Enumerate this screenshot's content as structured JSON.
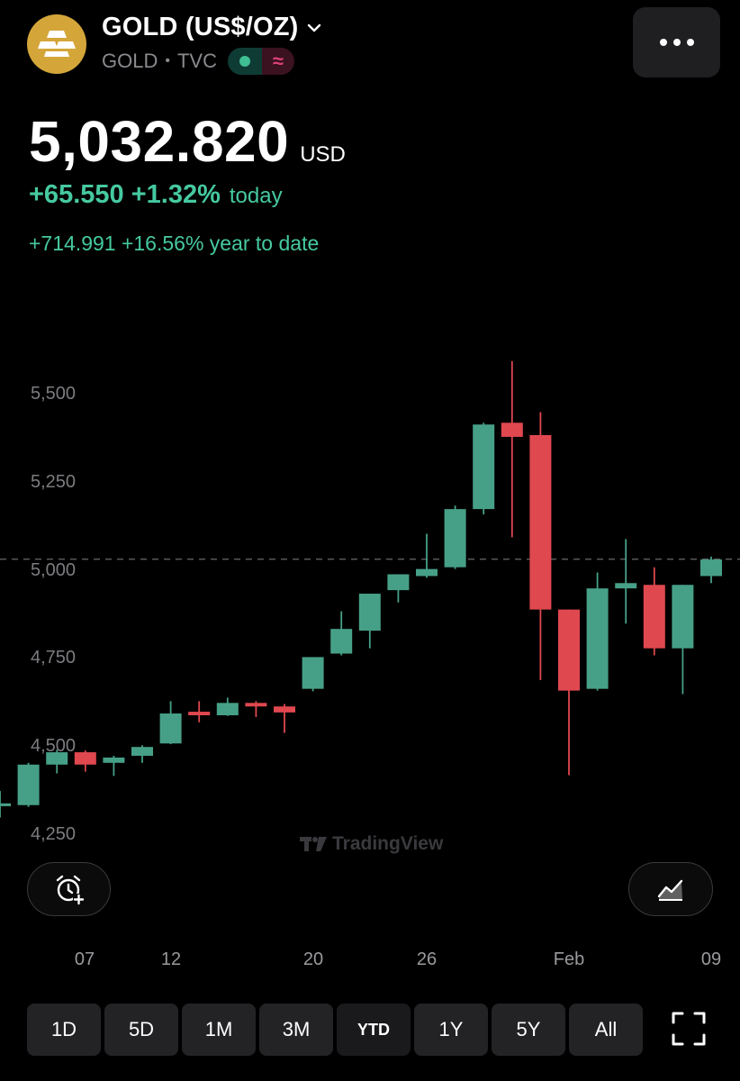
{
  "header": {
    "title": "GOLD (US$/OZ)",
    "symbol": "GOLD",
    "separator": "•",
    "exchange": "TVC",
    "logo_color": "#d4a63a"
  },
  "quote": {
    "price": "5,032.820",
    "currency": "USD",
    "change_today": "+65.550 +1.32%",
    "today_label": "today",
    "ytd": "+714.991 +16.56% year to date"
  },
  "chart_data": {
    "type": "candlestick",
    "y_ticks": [
      "5,500",
      "5,250",
      "5,000",
      "4,750",
      "4,500",
      "4,250"
    ],
    "ylim": [
      4230,
      5560
    ],
    "x_ticks": [
      "07",
      "12",
      "20",
      "26",
      "Feb",
      "09"
    ],
    "current_price_line": 5032.82,
    "colors": {
      "up": "#46a087",
      "down": "#e0484f"
    },
    "candles": [
      {
        "o": 4332,
        "h": 4375,
        "l": 4300,
        "c": 4340
      },
      {
        "o": 4335,
        "h": 4455,
        "l": 4330,
        "c": 4450
      },
      {
        "o": 4450,
        "h": 4492,
        "l": 4425,
        "c": 4485
      },
      {
        "o": 4485,
        "h": 4490,
        "l": 4430,
        "c": 4450
      },
      {
        "o": 4455,
        "h": 4475,
        "l": 4418,
        "c": 4470
      },
      {
        "o": 4475,
        "h": 4505,
        "l": 4455,
        "c": 4500
      },
      {
        "o": 4510,
        "h": 4630,
        "l": 4508,
        "c": 4595
      },
      {
        "o": 4600,
        "h": 4630,
        "l": 4570,
        "c": 4590
      },
      {
        "o": 4590,
        "h": 4640,
        "l": 4588,
        "c": 4625
      },
      {
        "o": 4625,
        "h": 4630,
        "l": 4585,
        "c": 4615
      },
      {
        "o": 4615,
        "h": 4622,
        "l": 4540,
        "c": 4598
      },
      {
        "o": 4665,
        "h": 4755,
        "l": 4658,
        "c": 4755
      },
      {
        "o": 4765,
        "h": 4885,
        "l": 4760,
        "c": 4835
      },
      {
        "o": 4830,
        "h": 4935,
        "l": 4780,
        "c": 4935
      },
      {
        "o": 4945,
        "h": 4990,
        "l": 4910,
        "c": 4990
      },
      {
        "o": 4985,
        "h": 5105,
        "l": 4980,
        "c": 5005
      },
      {
        "o": 5010,
        "h": 5185,
        "l": 5005,
        "c": 5175
      },
      {
        "o": 5175,
        "h": 5420,
        "l": 5160,
        "c": 5415
      },
      {
        "o": 5420,
        "h": 5595,
        "l": 5095,
        "c": 5380
      },
      {
        "o": 5385,
        "h": 5450,
        "l": 4690,
        "c": 4890
      },
      {
        "o": 4890,
        "h": 4890,
        "l": 4420,
        "c": 4660
      },
      {
        "o": 4665,
        "h": 4995,
        "l": 4660,
        "c": 4950
      },
      {
        "o": 4950,
        "h": 5090,
        "l": 4850,
        "c": 4965
      },
      {
        "o": 4960,
        "h": 5010,
        "l": 4760,
        "c": 4780
      },
      {
        "o": 4780,
        "h": 4960,
        "l": 4650,
        "c": 4960
      },
      {
        "o": 4985,
        "h": 5040,
        "l": 4965,
        "c": 5032
      }
    ]
  },
  "watermark": "TradingView",
  "ranges": [
    "1D",
    "5D",
    "1M",
    "3M",
    "YTD",
    "1Y",
    "5Y",
    "All"
  ],
  "active_range": "YTD"
}
